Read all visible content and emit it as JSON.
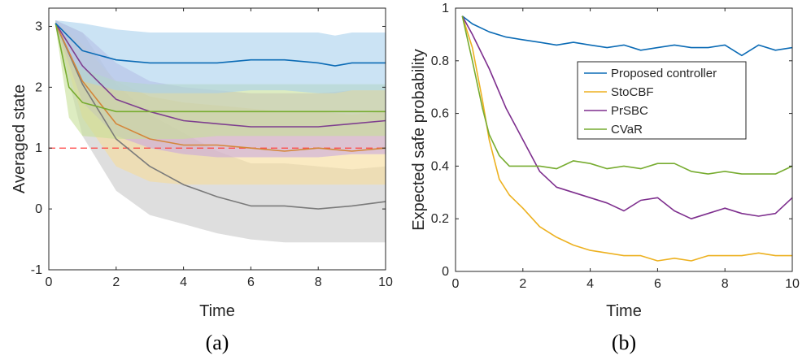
{
  "chart_data": [
    {
      "type": "line",
      "caption": "(a)",
      "xlabel": "Time",
      "ylabel": "Averaged state",
      "xlim": [
        0,
        10
      ],
      "ylim": [
        -1,
        3.3
      ],
      "xticks": [
        "0",
        "2",
        "4",
        "6",
        "8",
        "10"
      ],
      "yticks": [
        "-1",
        "0",
        "1",
        "2",
        "3"
      ],
      "reference_line": {
        "y": 1,
        "color": "#ff4040",
        "style": "dashed"
      },
      "series": [
        {
          "name": "Gray",
          "color": "#7a7a7a",
          "band_color": "#c8c8c8",
          "x": [
            0.2,
            1,
            2,
            3,
            4,
            5,
            6,
            7,
            8,
            9,
            10
          ],
          "y": [
            3.05,
            2.05,
            1.15,
            0.7,
            0.4,
            0.2,
            0.05,
            0.05,
            0.0,
            0.05,
            0.12
          ],
          "lower": [
            3.0,
            1.2,
            0.3,
            -0.1,
            -0.25,
            -0.4,
            -0.5,
            -0.55,
            -0.55,
            -0.55,
            -0.55
          ],
          "upper": [
            3.1,
            2.9,
            2.05,
            1.55,
            1.25,
            0.95,
            0.75,
            0.75,
            0.7,
            0.65,
            0.7
          ]
        },
        {
          "name": "Orange",
          "color": "#d4863a",
          "band_color": "#f7dc9a",
          "x": [
            0.2,
            1,
            2,
            3,
            4,
            5,
            6,
            7,
            8,
            9,
            10
          ],
          "y": [
            3.05,
            2.1,
            1.4,
            1.15,
            1.05,
            1.05,
            1.0,
            0.95,
            1.0,
            0.95,
            1.0
          ],
          "lower": [
            3.0,
            1.5,
            0.7,
            0.45,
            0.4,
            0.4,
            0.4,
            0.4,
            0.4,
            0.4,
            0.4
          ],
          "upper": [
            3.1,
            2.7,
            2.1,
            1.85,
            1.75,
            1.7,
            1.65,
            1.6,
            1.6,
            1.55,
            1.6
          ]
        },
        {
          "name": "Purple",
          "color": "#7e3f8f",
          "band_color": "#c9a9dc",
          "x": [
            0.2,
            1,
            2,
            3,
            4,
            5,
            6,
            7,
            8,
            9,
            10
          ],
          "y": [
            3.05,
            2.35,
            1.8,
            1.6,
            1.45,
            1.4,
            1.35,
            1.35,
            1.35,
            1.4,
            1.45
          ],
          "lower": [
            3.0,
            1.75,
            1.2,
            1.0,
            0.9,
            0.85,
            0.85,
            0.85,
            0.85,
            0.9,
            0.9
          ],
          "upper": [
            3.1,
            2.9,
            2.4,
            2.1,
            2.0,
            1.95,
            1.9,
            1.9,
            1.9,
            1.95,
            1.95
          ]
        },
        {
          "name": "Green",
          "color": "#77ac30",
          "band_color": "#c7df98",
          "x": [
            0.2,
            0.6,
            1,
            2,
            3,
            4,
            5,
            6,
            7,
            8,
            9,
            10
          ],
          "y": [
            3.05,
            2.0,
            1.75,
            1.6,
            1.6,
            1.6,
            1.6,
            1.6,
            1.6,
            1.6,
            1.6,
            1.6
          ],
          "lower": [
            3.0,
            1.5,
            1.2,
            1.15,
            1.15,
            1.15,
            1.2,
            1.2,
            1.2,
            1.2,
            1.2,
            1.2
          ],
          "upper": [
            3.1,
            2.5,
            2.3,
            2.1,
            2.05,
            2.05,
            2.05,
            2.05,
            2.05,
            2.05,
            2.05,
            2.05
          ]
        },
        {
          "name": "Blue",
          "color": "#0b6bb5",
          "band_color": "#a9d1ec",
          "x": [
            0.2,
            1,
            2,
            3,
            4,
            5,
            6,
            7,
            8,
            8.5,
            9,
            10
          ],
          "y": [
            3.05,
            2.6,
            2.45,
            2.4,
            2.4,
            2.4,
            2.45,
            2.45,
            2.4,
            2.35,
            2.4,
            2.4
          ],
          "lower": [
            3.0,
            2.1,
            1.95,
            1.9,
            1.9,
            1.9,
            1.95,
            1.95,
            1.9,
            1.9,
            1.95,
            1.95
          ],
          "upper": [
            3.1,
            3.05,
            2.95,
            2.9,
            2.9,
            2.9,
            2.9,
            2.9,
            2.9,
            2.85,
            2.9,
            2.9
          ]
        }
      ]
    },
    {
      "type": "line",
      "caption": "(b)",
      "xlabel": "Time",
      "ylabel": "Expected safe probability",
      "xlim": [
        0,
        10
      ],
      "ylim": [
        0,
        1
      ],
      "xticks": [
        "0",
        "2",
        "4",
        "6",
        "8",
        "10"
      ],
      "yticks": [
        "0",
        "0.2",
        "0.4",
        "0.6",
        "0.8",
        "1"
      ],
      "legend": {
        "placement": "top-right"
      },
      "series": [
        {
          "name": "Proposed controller",
          "color": "#0b6bb5",
          "x": [
            0.2,
            0.5,
            1,
            1.5,
            2,
            2.5,
            3,
            3.5,
            4,
            4.5,
            5,
            5.5,
            6,
            6.5,
            7,
            7.5,
            8,
            8.5,
            9,
            9.5,
            10
          ],
          "y": [
            0.97,
            0.94,
            0.91,
            0.89,
            0.88,
            0.87,
            0.86,
            0.87,
            0.86,
            0.85,
            0.86,
            0.84,
            0.85,
            0.86,
            0.85,
            0.85,
            0.86,
            0.82,
            0.86,
            0.84,
            0.85
          ]
        },
        {
          "name": "StoCBF",
          "color": "#edb120",
          "x": [
            0.2,
            0.5,
            0.8,
            1,
            1.3,
            1.6,
            2,
            2.5,
            3,
            3.5,
            4,
            4.5,
            5,
            5.5,
            6,
            6.5,
            7,
            7.5,
            8,
            8.5,
            9,
            9.5,
            10
          ],
          "y": [
            0.97,
            0.85,
            0.65,
            0.5,
            0.35,
            0.29,
            0.24,
            0.17,
            0.13,
            0.1,
            0.08,
            0.07,
            0.06,
            0.06,
            0.04,
            0.05,
            0.04,
            0.06,
            0.06,
            0.06,
            0.07,
            0.06,
            0.06
          ]
        },
        {
          "name": "PrSBC",
          "color": "#7e2f8e",
          "x": [
            0.2,
            0.5,
            1,
            1.5,
            2,
            2.5,
            3,
            3.5,
            4,
            4.5,
            5,
            5.5,
            6,
            6.5,
            7,
            7.5,
            8,
            8.5,
            9,
            9.5,
            10
          ],
          "y": [
            0.97,
            0.9,
            0.77,
            0.62,
            0.5,
            0.38,
            0.32,
            0.3,
            0.28,
            0.26,
            0.23,
            0.27,
            0.28,
            0.23,
            0.2,
            0.22,
            0.24,
            0.22,
            0.21,
            0.22,
            0.28
          ]
        },
        {
          "name": "CVaR",
          "color": "#77ac30",
          "x": [
            0.2,
            0.5,
            0.8,
            1,
            1.3,
            1.6,
            2,
            2.5,
            3,
            3.5,
            4,
            4.5,
            5,
            5.5,
            6,
            6.5,
            7,
            7.5,
            8,
            8.5,
            9,
            9.5,
            10
          ],
          "y": [
            0.97,
            0.8,
            0.62,
            0.52,
            0.44,
            0.4,
            0.4,
            0.4,
            0.39,
            0.42,
            0.41,
            0.39,
            0.4,
            0.39,
            0.41,
            0.41,
            0.38,
            0.37,
            0.38,
            0.37,
            0.37,
            0.37,
            0.4
          ]
        }
      ]
    }
  ]
}
